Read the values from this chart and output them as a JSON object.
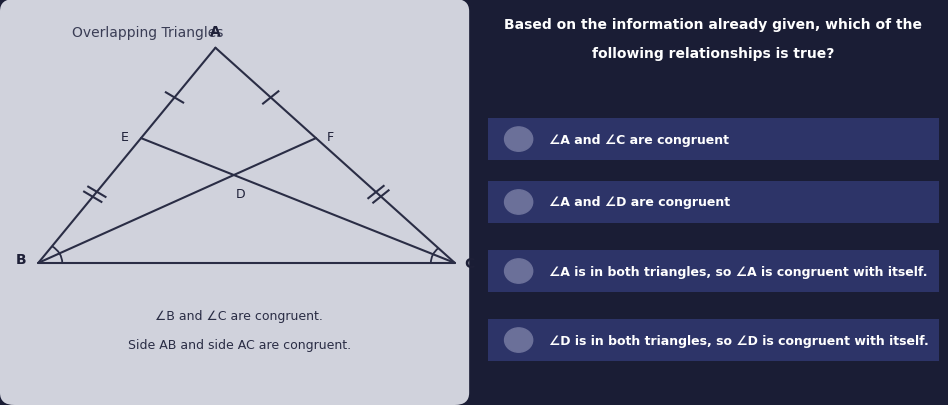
{
  "title_left": "Overlapping Triangles",
  "title_right_line1": "Based on the information already given, which of the",
  "title_right_line2": "following relationships is true?",
  "given_info_line1": "∠B and ∠C are congruent.",
  "given_info_line2": "Side AB and side AC are congruent.",
  "options": [
    "∠A and ∠C are congruent",
    "∠A and ∠D are congruent",
    "∠A is in both triangles, so ∠A is congruent with itself.",
    "∠D is in both triangles, so ∠D is congruent with itself."
  ],
  "left_bg": "#d0d2dc",
  "right_bg_top": "#1a1d35",
  "right_bg_option": "#2d3468",
  "right_bg_separator": "#0d0f20",
  "option_text_color": "#ffffff",
  "title_right_color": "#ffffff",
  "radio_color": "#6b7099",
  "triangle_color": "#2a2d45",
  "label_color": "#1e2038",
  "left_title_color": "#3a3d55"
}
